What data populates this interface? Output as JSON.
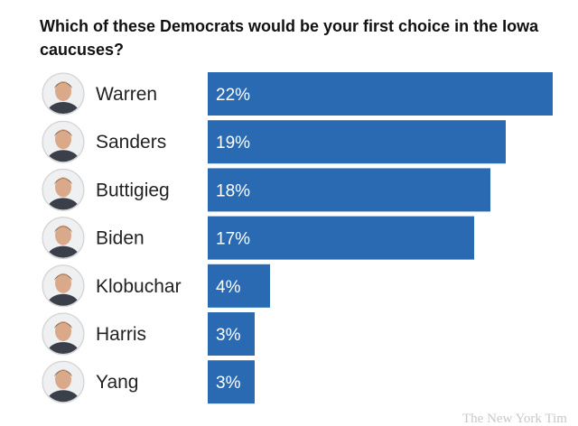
{
  "chart_data": {
    "type": "bar",
    "orientation": "horizontal",
    "title": "Which of these Democrats would be your first choice in the Iowa caucuses?",
    "categories": [
      "Warren",
      "Sanders",
      "Buttigieg",
      "Biden",
      "Klobuchar",
      "Harris",
      "Yang"
    ],
    "values": [
      22,
      19,
      18,
      17,
      4,
      3,
      3
    ],
    "value_labels": [
      "22%",
      "19%",
      "18%",
      "17%",
      "4%",
      "3%",
      "3%"
    ],
    "unit": "%",
    "xlim": [
      0,
      22
    ],
    "grid": false,
    "legend": "none",
    "bar_color": "#2a6ab2"
  },
  "icons": [
    "avatar-icon"
  ],
  "watermark": "The New York Tim"
}
